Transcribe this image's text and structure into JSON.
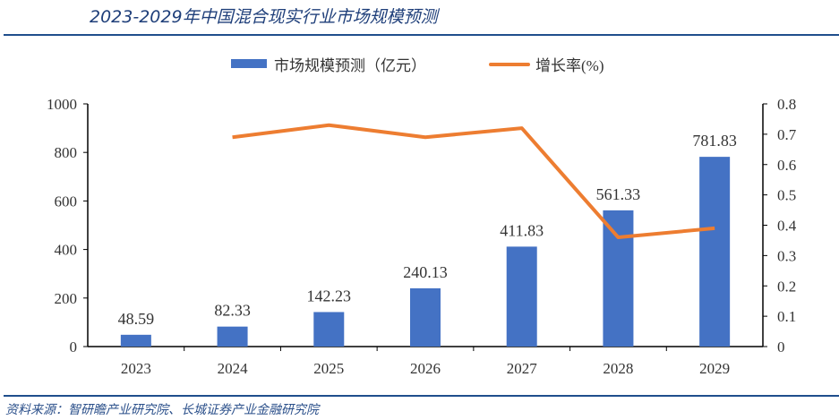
{
  "title": "2023-2029年中国混合现实行业市场规模预测",
  "source": "资料来源：智研瞻产业研究院、长城证券产业金融研究院",
  "chart_data": {
    "type": "bar+line",
    "title": "2023-2029年中国混合现实行业市场规模预测",
    "categories": [
      "2023",
      "2024",
      "2025",
      "2026",
      "2027",
      "2028",
      "2029"
    ],
    "series": [
      {
        "name": "市场规模预测（亿元）",
        "type": "bar",
        "axis": "left",
        "color": "#4472c4",
        "values": [
          48.59,
          82.33,
          142.23,
          240.13,
          411.83,
          561.33,
          781.83
        ],
        "labels": [
          "48.59",
          "82.33",
          "142.23",
          "240.13",
          "411.83",
          "561.33",
          "781.83"
        ]
      },
      {
        "name": "增长率(%)",
        "type": "line",
        "axis": "right",
        "color": "#ed7d31",
        "values": [
          null,
          0.69,
          0.73,
          0.69,
          0.72,
          0.36,
          0.39
        ]
      }
    ],
    "y_left": {
      "range": [
        0,
        1000
      ],
      "ticks": [
        "0",
        "200",
        "400",
        "600",
        "800",
        "1000"
      ]
    },
    "y_right": {
      "range": [
        0,
        0.8
      ],
      "ticks": [
        "0",
        "0.1",
        "0.2",
        "0.3",
        "0.4",
        "0.5",
        "0.6",
        "0.7",
        "0.8"
      ]
    },
    "grid": false,
    "legend": "top-center"
  }
}
